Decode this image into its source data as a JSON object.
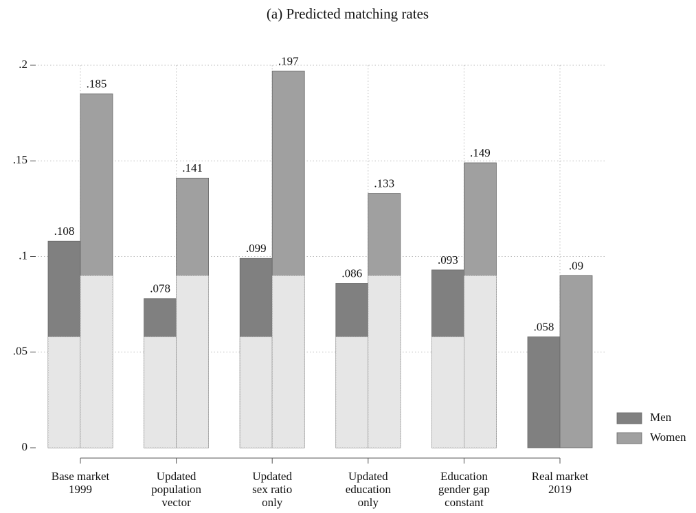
{
  "chart_data": {
    "type": "bar",
    "title": "(a) Predicted matching rates",
    "categories": [
      [
        "Base market",
        "1999"
      ],
      [
        "Updated",
        "population",
        "vector"
      ],
      [
        "Updated",
        "sex ratio",
        "only"
      ],
      [
        "Updated",
        "education",
        "only"
      ],
      [
        "Education",
        "gender gap",
        "constant"
      ],
      [
        "Real market",
        "2019"
      ]
    ],
    "series": [
      {
        "name": "Men",
        "color": "#808080",
        "values": [
          0.108,
          0.078,
          0.099,
          0.086,
          0.093,
          0.058
        ],
        "value_labels": [
          ".108",
          ".078",
          ".099",
          ".086",
          ".093",
          ".058"
        ]
      },
      {
        "name": "Women",
        "color": "#a0a0a0",
        "values": [
          0.185,
          0.141,
          0.197,
          0.133,
          0.149,
          0.09
        ],
        "value_labels": [
          ".185",
          ".141",
          ".197",
          ".133",
          ".149",
          ".09"
        ]
      }
    ],
    "ylim": [
      0,
      0.2
    ],
    "yticks": [
      0,
      {
        "value": 0.05,
        "label": ".05"
      },
      {
        "value": 0.1,
        "label": ".1"
      },
      {
        "value": 0.15,
        "label": ".15"
      },
      {
        "value": 0.2,
        "label": ".2"
      }
    ],
    "grid": true,
    "legend": "right"
  }
}
